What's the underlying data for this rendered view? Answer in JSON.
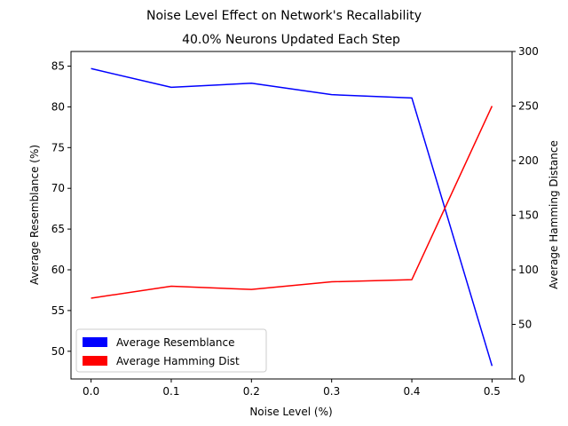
{
  "chart_data": {
    "type": "line",
    "suptitle": "Noise Level Effect on Network's Recallability",
    "title": "40.0% Neurons Updated Each Step",
    "xlabel": "Noise Level (%)",
    "ylabel_left": "Average Resemblance (%)",
    "ylabel_right": "Average Hamming Distance",
    "x": [
      0.0,
      0.1,
      0.2,
      0.3,
      0.4,
      0.5
    ],
    "xlim": [
      -0.025,
      0.525
    ],
    "ylim_left": [
      46.6,
      86.8
    ],
    "ylim_right": [
      0,
      300
    ],
    "xticks": [
      "0.0",
      "0.1",
      "0.2",
      "0.3",
      "0.4",
      "0.5"
    ],
    "yticks_left": [
      "50",
      "55",
      "60",
      "65",
      "70",
      "75",
      "80",
      "85"
    ],
    "yticks_right": [
      "0",
      "50",
      "100",
      "150",
      "200",
      "250",
      "300"
    ],
    "grid": false,
    "legend_position": "lower-left",
    "series": [
      {
        "name": "Average Resemblance",
        "axis": "left",
        "color": "#0000ff",
        "values": [
          84.7,
          82.4,
          82.9,
          81.5,
          81.1,
          48.2
        ]
      },
      {
        "name": "Average Hamming Dist",
        "axis": "right",
        "color": "#ff0000",
        "values": [
          74,
          85,
          82,
          89,
          91,
          250
        ]
      }
    ]
  }
}
